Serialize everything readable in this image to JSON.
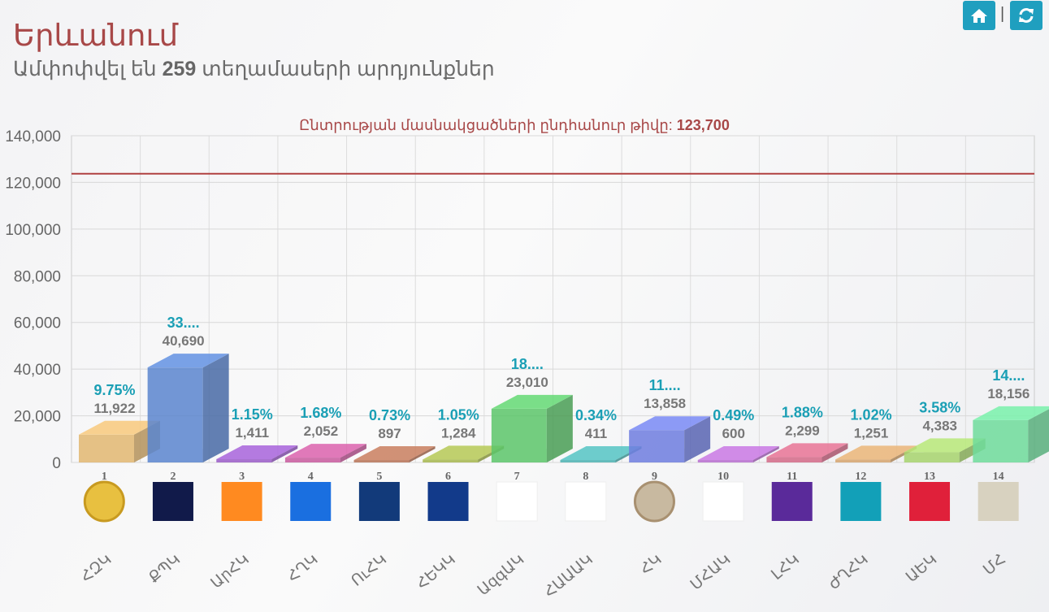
{
  "header": {
    "title": "Երևանում",
    "subtitle_prefix": "Ամփոփվել են",
    "subtitle_count": "259",
    "subtitle_suffix": "տեղամասերի արդյունքներ",
    "home_icon": "home-icon",
    "refresh_icon": "refresh-icon"
  },
  "colors": {
    "accent": "#1f9fbf",
    "title": "#a84848",
    "percent": "#1a9fb5",
    "value": "#777777",
    "reference_line": "#b04040"
  },
  "chart_data": {
    "type": "bar",
    "title_prefix": "Ընտրության մասնակցածների ընդհանուր թիվը:",
    "title_value": "123,700",
    "reference_line": 123700,
    "ylim": [
      0,
      140000
    ],
    "yticks": [
      "0",
      "20,000",
      "40,000",
      "60,000",
      "80,000",
      "100,000",
      "120,000",
      "140,000"
    ],
    "grid": true,
    "numbers": [
      "1",
      "2",
      "3",
      "4",
      "5",
      "6",
      "7",
      "8",
      "9",
      "10",
      "11",
      "12",
      "13",
      "14"
    ],
    "categories": [
      "ՀԶԿ",
      "ՔՊԿ",
      "ԱրՀԿ",
      "ՀՂԿ",
      "ՈւՀԿ",
      "ՀԵԿԿ",
      "ԱզգԱԿ",
      "ՀԱԱԱԿ",
      "ՀԿ",
      "ՄՀԱԿ",
      "ԼՀԿ",
      "ԺՂՀԿ",
      "ԱԵԿ",
      "ՄՀ"
    ],
    "values": [
      11922,
      40690,
      1411,
      2052,
      897,
      1284,
      23010,
      411,
      13858,
      600,
      2299,
      1251,
      4383,
      18156
    ],
    "value_labels": [
      "11,922",
      "40,690",
      "1,411",
      "2,052",
      "897",
      "1,284",
      "23,010",
      "411",
      "13,858",
      "600",
      "2,299",
      "1,251",
      "4,383",
      "18,156"
    ],
    "percent_labels": [
      "9.75%",
      "33....",
      "1.15%",
      "1.68%",
      "0.73%",
      "1.05%",
      "18....",
      "0.34%",
      "11....",
      "0.49%",
      "1.88%",
      "1.02%",
      "3.58%",
      "14...."
    ],
    "bar_colors": [
      "#e2b872",
      "#5b86cf",
      "#9a5cc8",
      "#c85a9e",
      "#b87357",
      "#a6b84e",
      "#5cc66a",
      "#4eb3b3",
      "#6f7ee0",
      "#b86ed0",
      "#d46a88",
      "#d6a56e",
      "#a8d46e",
      "#6fdc9c"
    ],
    "logo_colors": [
      "#e8c040",
      "#111a4a",
      "#ff8a20",
      "#1a6fe0",
      "#123a7a",
      "#123a8a",
      "#ffffff",
      "#ffffff",
      "#c8b9a0",
      "#ffffff",
      "#5a2a9a",
      "#12a0b8",
      "#e0203a",
      "#d8d2c0"
    ]
  }
}
